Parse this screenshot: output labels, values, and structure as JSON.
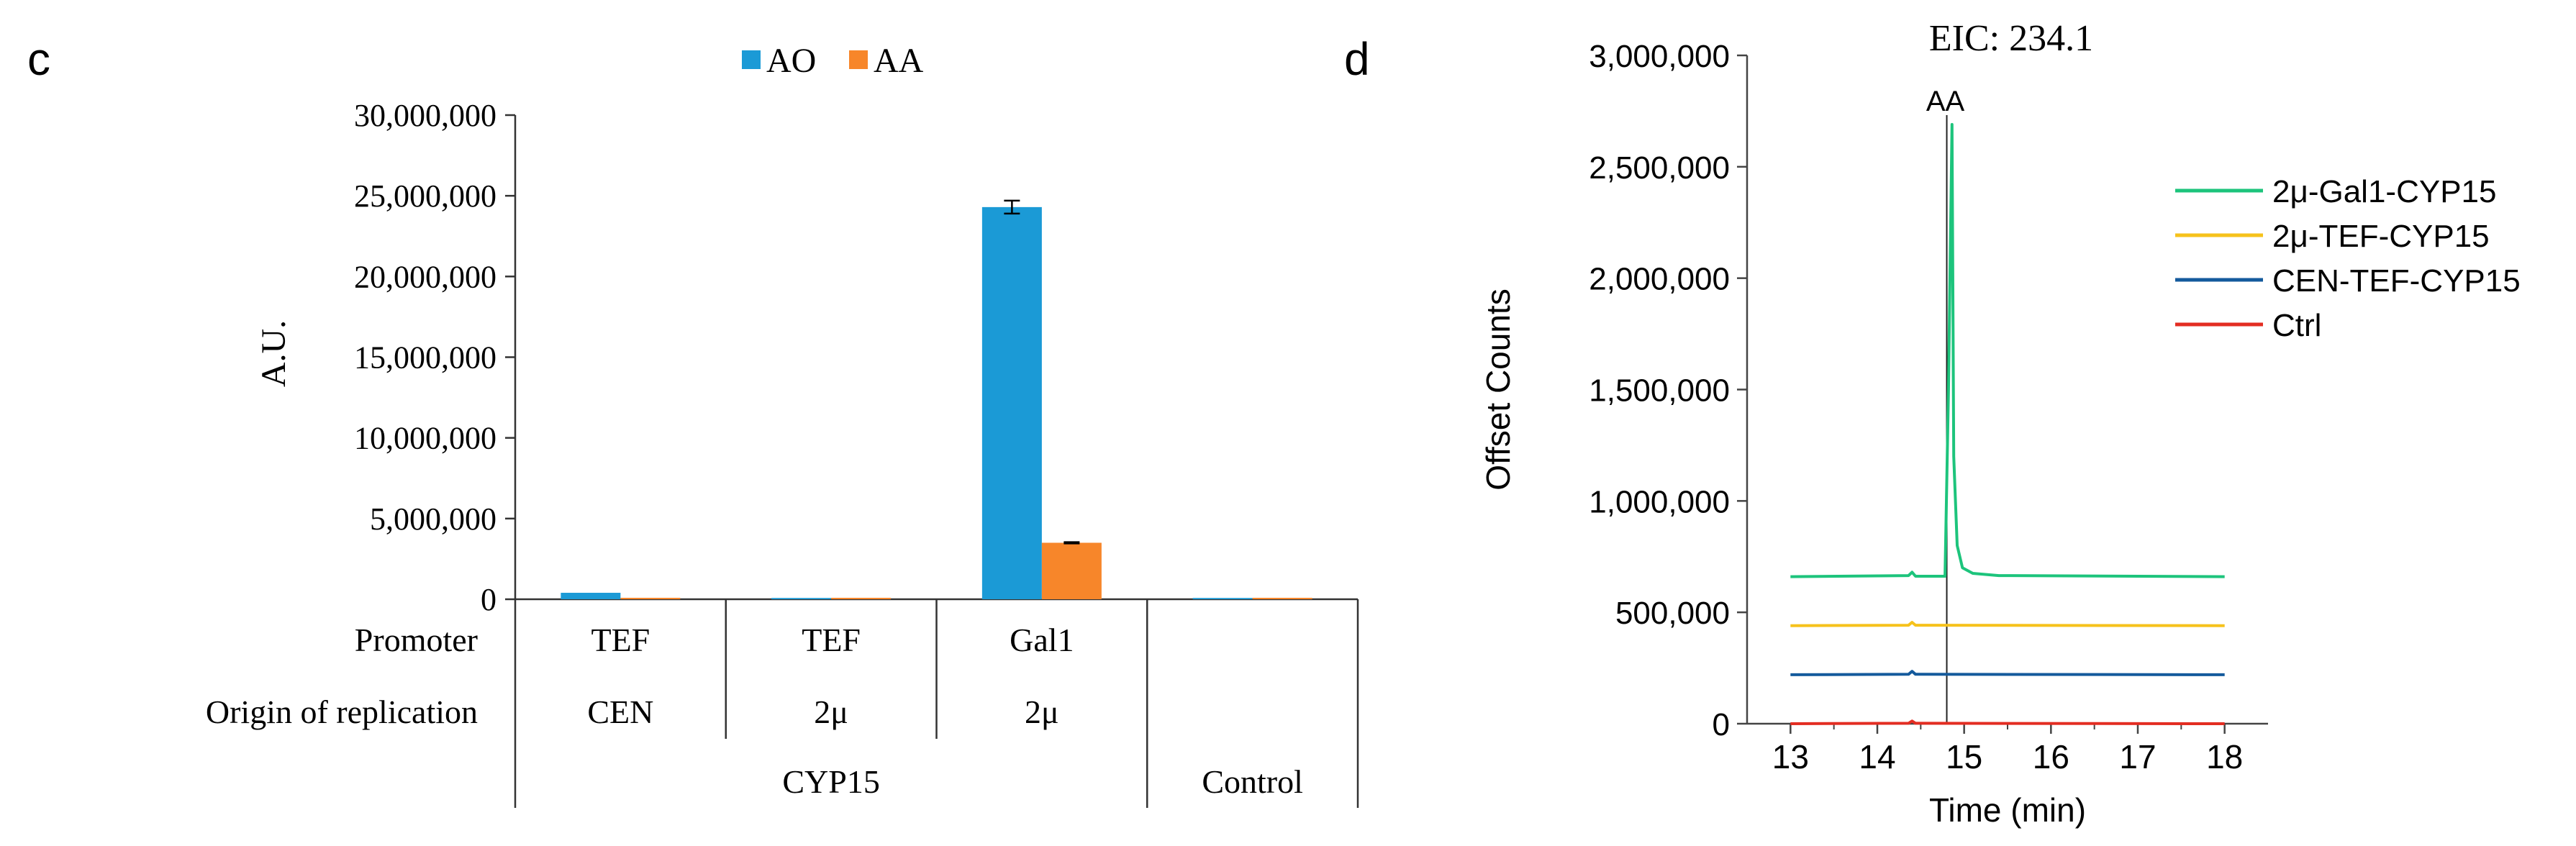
{
  "chart_data": [
    {
      "panel": "c",
      "type": "bar",
      "ylabel": "A.U.",
      "ylim": [
        0,
        30000000
      ],
      "yticks": [
        0,
        5000000,
        10000000,
        15000000,
        20000000,
        25000000,
        30000000
      ],
      "ytick_labels": [
        "0",
        "5,000,000",
        "10,000,000",
        "15,000,000",
        "20,000,000",
        "25,000,000",
        "30,000,000"
      ],
      "legend_position": "top",
      "series": [
        {
          "name": "AO",
          "color": "#1b9ad6",
          "values": [
            400000,
            80000,
            24300000,
            80000
          ],
          "errors": [
            0,
            0,
            400000,
            0
          ]
        },
        {
          "name": "AA",
          "color": "#f7862a",
          "values": [
            90000,
            90000,
            3500000,
            90000
          ],
          "errors": [
            0,
            0,
            40000,
            0
          ]
        }
      ],
      "row_labels": {
        "promoter": "Promoter",
        "origin": "Origin of replication"
      },
      "promoters": [
        "TEF",
        "TEF",
        "Gal1",
        ""
      ],
      "origins": [
        "CEN",
        "2μ",
        "2μ",
        ""
      ],
      "group_labels": [
        "CYP15",
        "Control"
      ]
    },
    {
      "panel": "d",
      "type": "line",
      "title": "EIC: 234.1",
      "xlabel": "Time (min)",
      "ylabel": "Offset Counts",
      "xlim": [
        12.5,
        18.5
      ],
      "xticks": [
        13,
        14,
        15,
        16,
        17,
        18
      ],
      "ylim": [
        0,
        3000000
      ],
      "yticks": [
        0,
        500000,
        1000000,
        1500000,
        2000000,
        2500000,
        3000000
      ],
      "ytick_labels": [
        "0",
        "500,000",
        "1,000,000",
        "1,500,000",
        "2,000,000",
        "2,500,000",
        "3,000,000"
      ],
      "annotation": {
        "text": "AA",
        "x": 14.8
      },
      "legend_position": "right",
      "series": [
        {
          "name": "2μ-Gal1-CYP15",
          "color": "#1dc47c",
          "x": [
            13,
            14.36,
            14.4,
            14.44,
            14.78,
            14.82,
            14.86,
            14.88,
            14.92,
            14.98,
            15.1,
            15.4,
            18
          ],
          "y": [
            660000,
            665000,
            680000,
            662000,
            662000,
            1500000,
            2690000,
            1200000,
            800000,
            700000,
            675000,
            665000,
            660000
          ]
        },
        {
          "name": "2μ-TEF-CYP15",
          "color": "#f6c21b",
          "x": [
            13,
            14.36,
            14.4,
            14.44,
            18
          ],
          "y": [
            440000,
            442000,
            455000,
            442000,
            440000
          ]
        },
        {
          "name": "CEN-TEF-CYP15",
          "color": "#145a9c",
          "x": [
            13,
            14.36,
            14.4,
            14.44,
            18
          ],
          "y": [
            220000,
            222000,
            235000,
            222000,
            220000
          ]
        },
        {
          "name": "Ctrl",
          "color": "#e32d22",
          "x": [
            13,
            14.36,
            14.4,
            14.44,
            18
          ],
          "y": [
            0,
            2000,
            12000,
            2000,
            0
          ]
        }
      ]
    }
  ],
  "panel_letters": [
    "c",
    "d"
  ]
}
